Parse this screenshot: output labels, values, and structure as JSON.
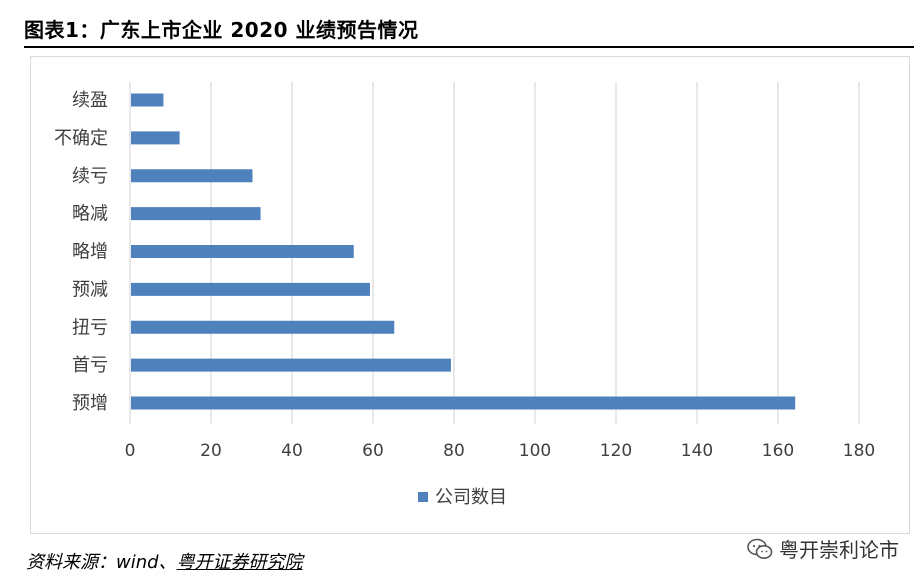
{
  "title": "图表1：广东上市企业 2020 业绩预告情况",
  "source": {
    "prefix": "资料来源：wind、",
    "org": "粤开证券研究院"
  },
  "watermark": {
    "text": "粤开崇利论市",
    "icon": "wechat-icon"
  },
  "colors": {
    "bar": "#4f81bd",
    "grid": "#d9d9d9",
    "axis_text": "#404040"
  },
  "chart_data": {
    "type": "bar",
    "orientation": "horizontal",
    "categories": [
      "续盈",
      "不确定",
      "续亏",
      "略减",
      "略增",
      "预减",
      "扭亏",
      "首亏",
      "预增"
    ],
    "series": [
      {
        "name": "公司数目",
        "values": [
          8,
          12,
          30,
          32,
          55,
          59,
          65,
          79,
          164
        ]
      }
    ],
    "xlim": [
      0,
      180
    ],
    "xticks": [
      0,
      20,
      40,
      60,
      80,
      100,
      120,
      140,
      160,
      180
    ],
    "grid": "vertical",
    "legend_position": "bottom"
  }
}
